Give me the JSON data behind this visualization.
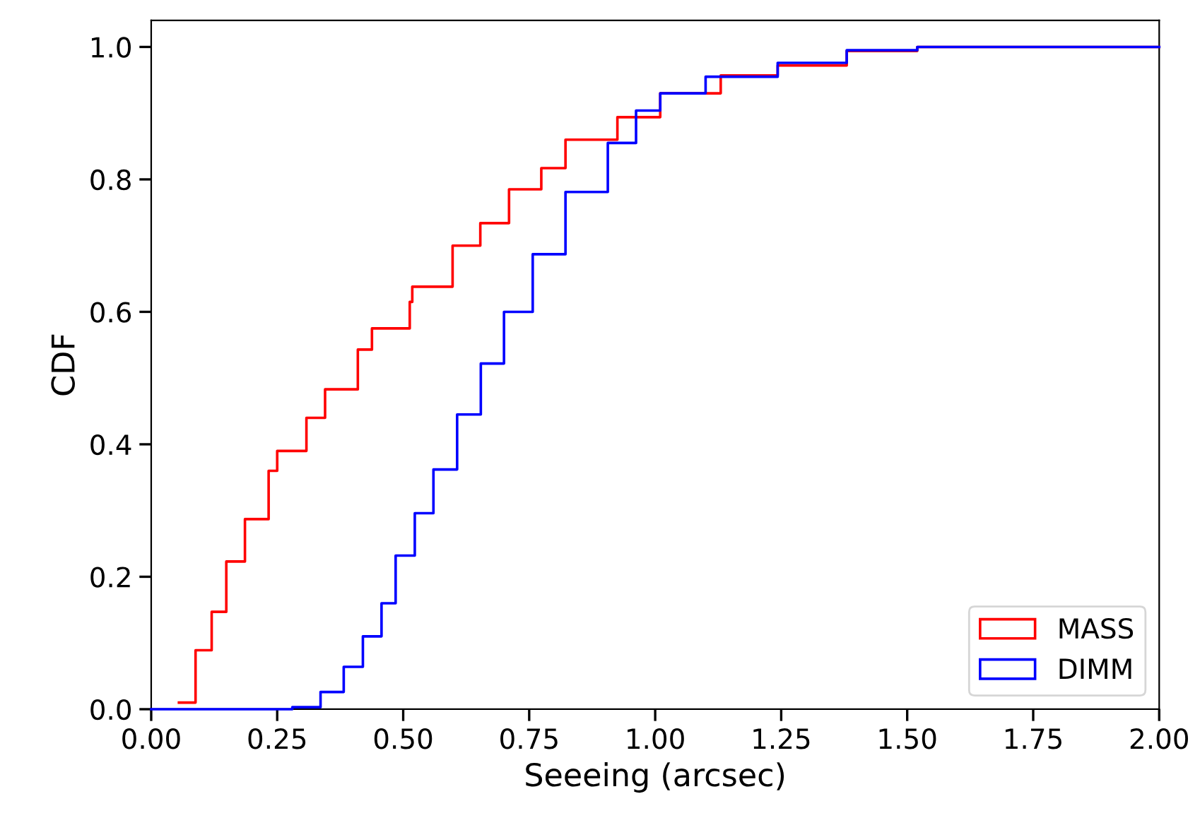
{
  "chart_data": {
    "type": "step",
    "xlabel": "Seeeing (arcsec)",
    "ylabel": "CDF",
    "xlim": [
      0,
      2
    ],
    "ylim": [
      0,
      1.04
    ],
    "xticks": [
      {
        "value": 0,
        "label": "0.00"
      },
      {
        "value": 0.25,
        "label": "0.25"
      },
      {
        "value": 0.5,
        "label": "0.50"
      },
      {
        "value": 0.75,
        "label": "0.75"
      },
      {
        "value": 1,
        "label": "1.00"
      },
      {
        "value": 1.25,
        "label": "1.25"
      },
      {
        "value": 1.5,
        "label": "1.50"
      },
      {
        "value": 1.75,
        "label": "1.75"
      },
      {
        "value": 2,
        "label": "2.00"
      }
    ],
    "yticks": [
      {
        "value": 0,
        "label": "0.0"
      },
      {
        "value": 0.2,
        "label": "0.2"
      },
      {
        "value": 0.4,
        "label": "0.4"
      },
      {
        "value": 0.6,
        "label": "0.6"
      },
      {
        "value": 0.8,
        "label": "0.8"
      },
      {
        "value": 1,
        "label": "1.0"
      }
    ],
    "legend": "bottom right",
    "grid": false,
    "series": [
      {
        "name": "MASS",
        "color": "#ff0000",
        "x": [
          0.055,
          0.088,
          0.12,
          0.149,
          0.186,
          0.233,
          0.25,
          0.308,
          0.345,
          0.41,
          0.438,
          0.513,
          0.518,
          0.598,
          0.653,
          0.71,
          0.774,
          0.822,
          0.925,
          1.01,
          1.13,
          1.243,
          1.38,
          1.52,
          2.0
        ],
        "values": [
          0.01,
          0.089,
          0.147,
          0.223,
          0.287,
          0.36,
          0.39,
          0.44,
          0.483,
          0.543,
          0.575,
          0.615,
          0.638,
          0.7,
          0.734,
          0.785,
          0.817,
          0.86,
          0.894,
          0.93,
          0.957,
          0.972,
          0.994,
          1.0,
          1.0
        ]
      },
      {
        "name": "DIMM",
        "color": "#0000ff",
        "x": [
          0,
          0.28,
          0.336,
          0.382,
          0.42,
          0.457,
          0.485,
          0.523,
          0.56,
          0.607,
          0.654,
          0.7,
          0.757,
          0.822,
          0.906,
          0.962,
          1.01,
          1.1,
          1.243,
          1.38,
          1.52,
          2.0
        ],
        "values": [
          0,
          0.003,
          0.026,
          0.064,
          0.11,
          0.16,
          0.232,
          0.296,
          0.362,
          0.445,
          0.522,
          0.6,
          0.687,
          0.781,
          0.855,
          0.904,
          0.93,
          0.955,
          0.976,
          0.995,
          1.0,
          1.0
        ]
      }
    ]
  }
}
